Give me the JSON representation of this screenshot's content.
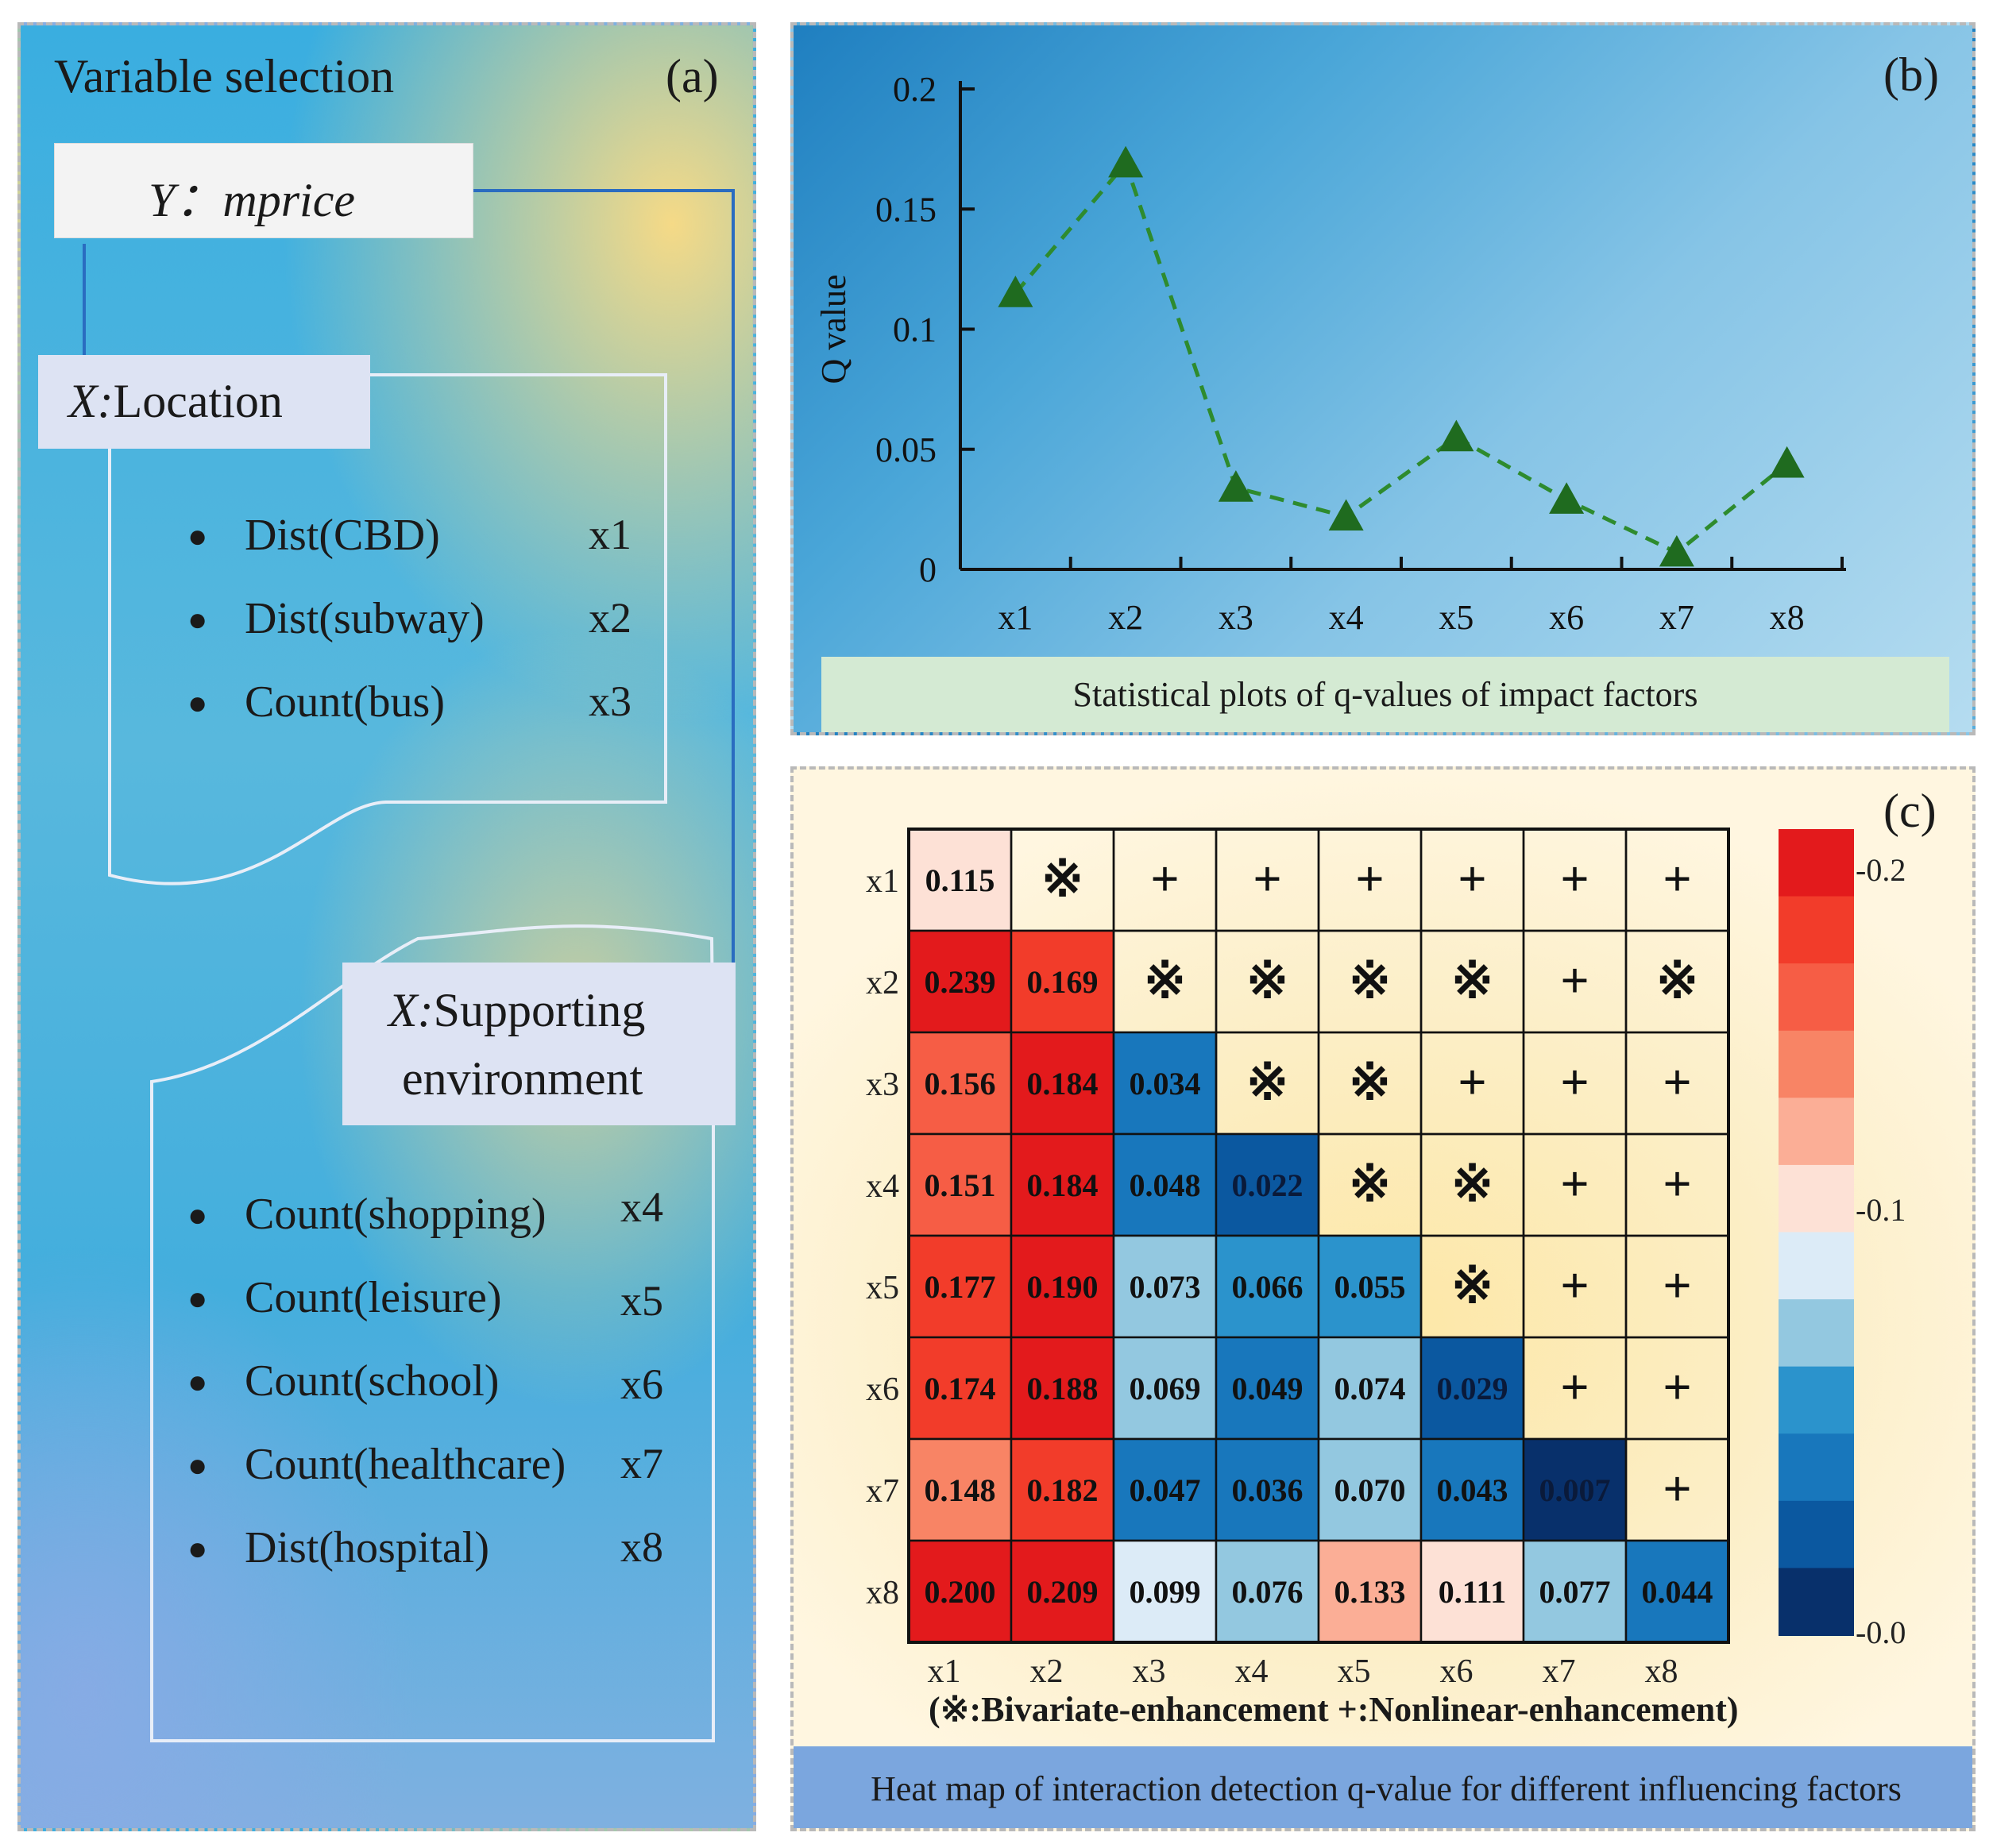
{
  "panel_a": {
    "title": "Variable selection",
    "letter": "(a)",
    "y_label_prefix": "Y：",
    "y_label_var": "mprice",
    "location_prefix": "X:",
    "location_label": "Location",
    "supporting_prefix": "X:",
    "supporting_line1": "Supporting",
    "supporting_line2": "environment",
    "location_items": [
      {
        "name": "Dist(CBD)",
        "code": "x1"
      },
      {
        "name": "Dist(subway)",
        "code": "x2"
      },
      {
        "name": "Count(bus)",
        "code": "x3"
      }
    ],
    "support_items": [
      {
        "name": "Count(shopping)",
        "code": "x4"
      },
      {
        "name": "Count(leisure)",
        "code": "x5"
      },
      {
        "name": "Count(school)",
        "code": "x6"
      },
      {
        "name": "Count(healthcare)",
        "code": "x7"
      },
      {
        "name": "Dist(hospital)",
        "code": "x8"
      }
    ],
    "bullet": "●"
  },
  "panel_b": {
    "letter": "(b)",
    "caption": "Statistical plots of q-values of impact factors"
  },
  "panel_c": {
    "letter": "(c)",
    "legend_text": "(※:Bivariate-enhancement      +:Nonlinear-enhancement)",
    "caption": "Heat map of interaction detection q-value for different influencing factors"
  },
  "colors": {
    "marker": "#1f6b1f",
    "line": "#2e8b2e",
    "colorbar": [
      "#e31a1c",
      "#f23c2a",
      "#f65d45",
      "#f88465",
      "#fbae96",
      "#fde1d6",
      "#dcebf7",
      "#93c8e0",
      "#2b93cc",
      "#1877bc",
      "#0b58a0",
      "#08306b"
    ]
  },
  "chart_data": [
    {
      "type": "line",
      "title": "",
      "xlabel": "",
      "ylabel": "Q value",
      "categories": [
        "x1",
        "x2",
        "x3",
        "x4",
        "x5",
        "x6",
        "x7",
        "x8"
      ],
      "values": [
        0.115,
        0.169,
        0.034,
        0.022,
        0.055,
        0.029,
        0.007,
        0.044
      ],
      "ylim": [
        0,
        0.2
      ],
      "yticks": [
        "0",
        "0.05",
        "0.1",
        "0.15",
        "0.2"
      ],
      "grid": false,
      "marker": "triangle",
      "linestyle": "dashed"
    },
    {
      "type": "heatmap",
      "rows": [
        "x1",
        "x2",
        "x3",
        "x4",
        "x5",
        "x6",
        "x7",
        "x8"
      ],
      "cols": [
        "x1",
        "x2",
        "x3",
        "x4",
        "x5",
        "x6",
        "x7",
        "x8"
      ],
      "matrix": [
        [
          "0.115",
          "※",
          "+",
          "+",
          "+",
          "+",
          "+",
          "+"
        ],
        [
          "0.239",
          "0.169",
          "※",
          "※",
          "※",
          "※",
          "+",
          "※"
        ],
        [
          "0.156",
          "0.184",
          "0.034",
          "※",
          "※",
          "+",
          "+",
          "+"
        ],
        [
          "0.151",
          "0.184",
          "0.048",
          "0.022",
          "※",
          "※",
          "+",
          "+"
        ],
        [
          "0.177",
          "0.190",
          "0.073",
          "0.066",
          "0.055",
          "※",
          "+",
          "+"
        ],
        [
          "0.174",
          "0.188",
          "0.069",
          "0.049",
          "0.074",
          "0.029",
          "+",
          "+"
        ],
        [
          "0.148",
          "0.182",
          "0.047",
          "0.036",
          "0.070",
          "0.043",
          "0.007",
          "+"
        ],
        [
          "0.200",
          "0.209",
          "0.099",
          "0.076",
          "0.133",
          "0.111",
          "0.077",
          "0.044"
        ]
      ],
      "colorbar_ticks": [
        "-0.2",
        "-0.1",
        "-0.0"
      ],
      "color_range": [
        0,
        0.2
      ]
    }
  ]
}
